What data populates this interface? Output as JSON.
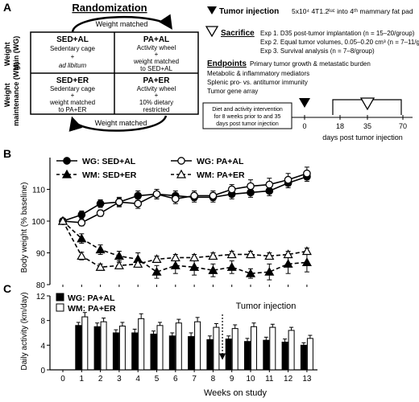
{
  "panelA": {
    "label": "A",
    "title": "Randomization",
    "weight_matched": "Weight matched",
    "row_labels": [
      {
        "line1": "Weight",
        "line2": "gain (WG)"
      },
      {
        "line1": "Weight",
        "line2": "maintenance (WM)"
      }
    ],
    "cells": [
      {
        "title": "SED+AL",
        "lines": [
          "Sedentary cage",
          "+",
          "ad libitum"
        ]
      },
      {
        "title": "PA+AL",
        "lines": [
          "Activity wheel",
          "+",
          "weight matched",
          "to SED+AL"
        ]
      },
      {
        "title": "SED+ER",
        "lines": [
          "Sedentary cage",
          "+",
          "weight matched",
          "to PA+ER"
        ]
      },
      {
        "title": "PA+ER",
        "lines": [
          "Activity wheel",
          "+",
          "10% dietary",
          "restricted"
        ]
      }
    ],
    "tumor_injection": {
      "label": "Tumor injection",
      "text": "5x10⁴ 4T1.2ˡᵘᶜ into 4ᵗʰ mammary fat pad"
    },
    "sacrifice": {
      "label": "Sacrifice",
      "items": [
        "Exp 1. D35 post-tumor implantation (n = 15–20/group)",
        "Exp 2. Equal tumor volumes, 0.05–0.20 cm³ (n = 7–11/group)",
        "Exp 3. Survival analysis (n = 7–8/group)"
      ]
    },
    "endpoints": {
      "label": "Endpoints",
      "items": [
        "Primary tumor growth & metastatic burden",
        "Metabolic & inflammatory mediators",
        "Splenic pro- vs. antitumor immunity",
        "Tumor gene array"
      ]
    },
    "intervention_box": [
      "Diet and activity intervention",
      "for 8 weeks prior to and 35",
      "days post tumor injection"
    ],
    "timeline": {
      "ticks": [
        "0",
        "18",
        "35",
        "70"
      ],
      "label": "days post tumor injection"
    }
  },
  "chart_data": [
    {
      "panel": "B",
      "type": "line",
      "ylabel": "Body weight (% baseline)",
      "ylim": [
        80,
        120
      ],
      "yticks": [
        80,
        90,
        100,
        110
      ],
      "x": [
        0,
        1,
        2,
        3,
        4,
        5,
        6,
        7,
        8,
        9,
        10,
        11,
        12,
        13
      ],
      "legend_placement": "top-left",
      "series": [
        {
          "name": "WG: SED+AL",
          "marker": "filled-circle",
          "dash": false,
          "values": [
            100,
            102,
            105.5,
            106,
            108,
            108.5,
            108,
            107.5,
            107.5,
            108.5,
            109,
            109.5,
            112,
            114
          ],
          "err": [
            0.5,
            1.2,
            1.2,
            1.2,
            1.5,
            1.5,
            1.5,
            1.5,
            1.5,
            1.5,
            1.5,
            1.5,
            1.5,
            1.5
          ]
        },
        {
          "name": "WG: PA+AL",
          "marker": "open-circle",
          "dash": false,
          "values": [
            100,
            99.5,
            102.5,
            106,
            105.5,
            108.5,
            107,
            108,
            108,
            110,
            111,
            111.5,
            113,
            115
          ],
          "err": [
            0.5,
            1,
            1,
            1.5,
            1.5,
            1.5,
            1.5,
            1.5,
            1.5,
            1.5,
            2,
            2,
            2,
            2
          ]
        },
        {
          "name": "WM: SED+ER",
          "marker": "filled-triangle",
          "dash": true,
          "values": [
            100,
            94.5,
            91,
            89,
            88,
            84,
            86,
            85.5,
            84.5,
            85.5,
            83.5,
            84,
            86.5,
            87
          ],
          "err": [
            0.5,
            1.5,
            1.5,
            1.5,
            2,
            2,
            2.5,
            2.5,
            2,
            2,
            1.5,
            2.5,
            3,
            3
          ]
        },
        {
          "name": "WM: PA+ER",
          "marker": "open-triangle",
          "dash": true,
          "values": [
            100,
            89,
            85.5,
            86,
            86.5,
            88,
            88.5,
            88.5,
            89,
            89.5,
            89.5,
            89,
            89.5,
            90.5
          ],
          "err": [
            0.5,
            1.2,
            1,
            1,
            1,
            1,
            1,
            1,
            1,
            1,
            1,
            1,
            1,
            1
          ]
        }
      ]
    },
    {
      "panel": "C",
      "type": "bar",
      "ylabel": "Daily activity (km/day)",
      "xlabel": "Weeks on study",
      "ylim": [
        0,
        12
      ],
      "yticks": [
        0,
        4,
        8,
        12
      ],
      "x": [
        0,
        1,
        2,
        3,
        4,
        5,
        6,
        7,
        8,
        9,
        10,
        11,
        12,
        13
      ],
      "categories": [
        1,
        2,
        3,
        4,
        5,
        6,
        7,
        8,
        9,
        10,
        11,
        12,
        13
      ],
      "annotation": "Tumor injection",
      "annotation_week": 8.5,
      "legend_placement": "top-left",
      "series": [
        {
          "name": "WG: PA+AL",
          "color": "#000000",
          "values": [
            7.2,
            7,
            6,
            6,
            5.8,
            5.5,
            5.4,
            4.9,
            5,
            4.6,
            4.8,
            4.5,
            4
          ],
          "err": [
            0.5,
            0.6,
            0.5,
            0.6,
            0.5,
            0.5,
            0.6,
            0.6,
            0.5,
            0.5,
            0.5,
            0.5,
            0.4
          ]
        },
        {
          "name": "WM: PA+ER",
          "color": "#ffffff",
          "values": [
            8.6,
            7.8,
            7.1,
            8.3,
            7.2,
            7.6,
            7.8,
            6.9,
            6.7,
            7,
            6.9,
            6.4,
            5.1
          ],
          "err": [
            0.7,
            0.6,
            0.6,
            0.8,
            0.5,
            0.6,
            0.7,
            0.6,
            0.6,
            0.6,
            0.5,
            0.5,
            0.5
          ]
        }
      ]
    }
  ],
  "panel_labels": {
    "B": "B",
    "C": "C"
  }
}
